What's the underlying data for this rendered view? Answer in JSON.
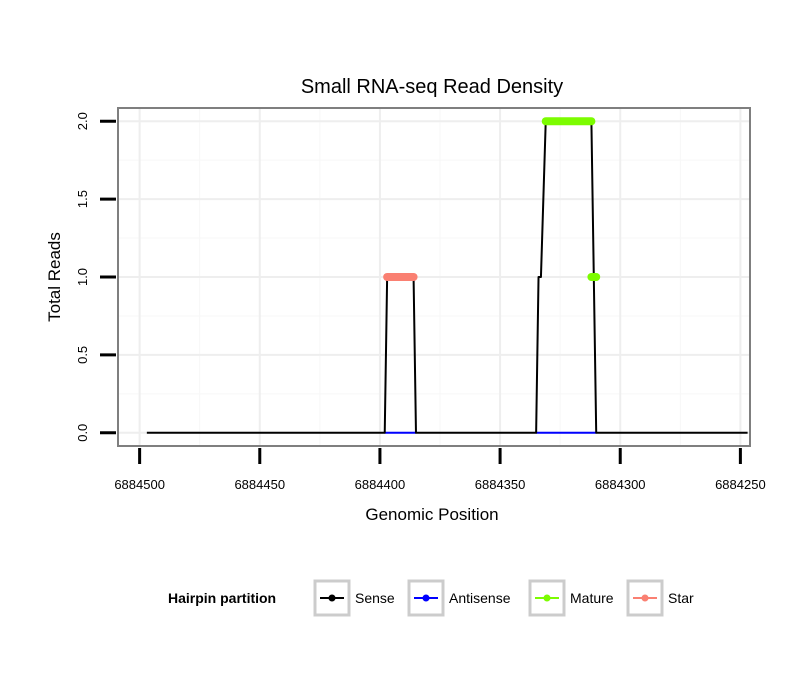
{
  "chart_data": {
    "type": "line",
    "title": "Small RNA-seq Read Density",
    "xlabel": "Genomic Position",
    "ylabel": "Total Reads",
    "x_reversed": true,
    "xlim": [
      6884509,
      6884246
    ],
    "ylim": [
      -0.085,
      2.085
    ],
    "x_ticks": [
      6884500,
      6884450,
      6884400,
      6884350,
      6884300,
      6884250
    ],
    "x_tick_labels": [
      "6884500",
      "6884450",
      "6884400",
      "6884350",
      "6884300",
      "6884250"
    ],
    "y_ticks": [
      0.0,
      0.5,
      1.0,
      1.5,
      2.0
    ],
    "y_tick_labels": [
      "0.0",
      "0.5",
      "1.0",
      "1.5",
      "2.0"
    ],
    "grid": true,
    "legend": {
      "title": "Hairpin partition",
      "position": "bottom",
      "entries": [
        {
          "label": "Sense",
          "color": "#000000"
        },
        {
          "label": "Antisense",
          "color": "#0000ff"
        },
        {
          "label": "Mature",
          "color": "#7cfc00"
        },
        {
          "label": "Star",
          "color": "#fa8072"
        }
      ]
    },
    "series": [
      {
        "name": "Sense",
        "color": "#000000",
        "style": "line",
        "x": [
          6884497,
          6884398,
          6884397,
          6884386,
          6884385,
          6884335,
          6884334,
          6884333,
          6884331,
          6884312,
          6884311,
          6884310,
          6884247
        ],
        "y": [
          0,
          0,
          1,
          1,
          0,
          0,
          1,
          1,
          2,
          2,
          1,
          0,
          0
        ]
      },
      {
        "name": "Antisense",
        "color": "#0000ff",
        "style": "line",
        "segments": [
          {
            "x": [
              6884398,
              6884385
            ],
            "y": [
              0,
              0
            ]
          },
          {
            "x": [
              6884335,
              6884310
            ],
            "y": [
              0,
              0
            ]
          }
        ]
      },
      {
        "name": "Mature",
        "color": "#7cfc00",
        "style": "thick",
        "segments": [
          {
            "x": [
              6884331,
              6884312
            ],
            "y": [
              2,
              2
            ]
          },
          {
            "x": [
              6884312,
              6884310
            ],
            "y": [
              1,
              1
            ]
          }
        ]
      },
      {
        "name": "Star",
        "color": "#fa8072",
        "style": "thick",
        "segments": [
          {
            "x": [
              6884397,
              6884386
            ],
            "y": [
              1,
              1
            ]
          }
        ]
      }
    ]
  }
}
